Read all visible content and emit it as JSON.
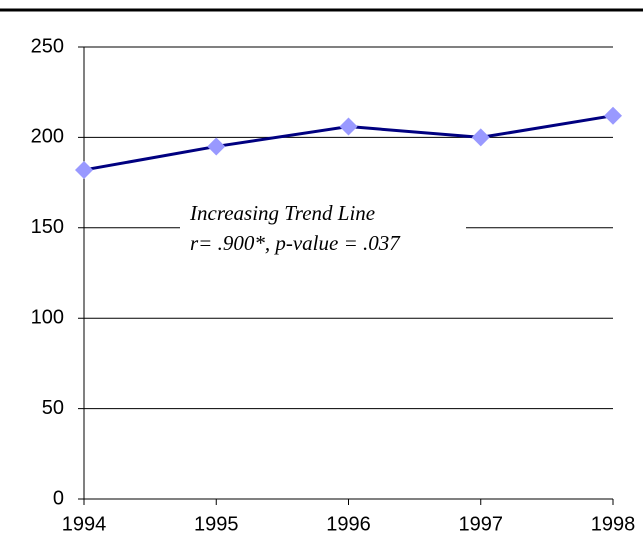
{
  "chart_data": {
    "type": "line",
    "x": [
      1994,
      1995,
      1996,
      1997,
      1998
    ],
    "values": [
      182,
      195,
      206,
      200,
      212
    ],
    "color": "#000080",
    "marker_color": "#9999ff",
    "xlim": [
      1994,
      1998
    ],
    "xticks": [
      1994,
      1995,
      1996,
      1997,
      1998
    ],
    "ylim": [
      0,
      250
    ],
    "yticks": [
      0,
      50,
      100,
      150,
      200,
      250
    ],
    "grid": true,
    "annotation": [
      "Increasing Trend Line",
      "r= .900*, p-value = .037"
    ]
  }
}
